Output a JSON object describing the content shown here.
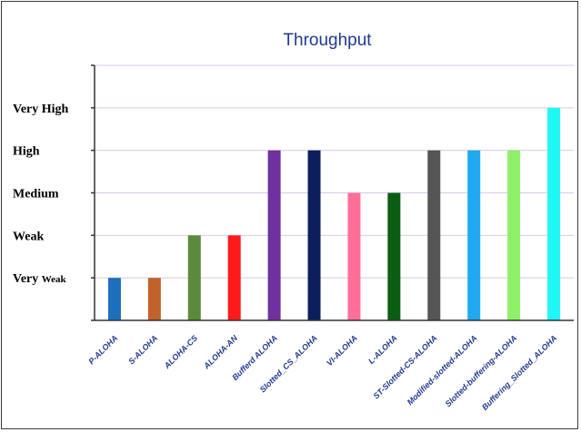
{
  "chart_data": {
    "type": "bar",
    "title": "Throughput",
    "xlabel": "",
    "ylabel": "",
    "ylim": [
      0,
      6
    ],
    "grid": true,
    "y_tick_labels": [
      "Very Weak",
      "Weak",
      "Medium",
      "High",
      "Very High"
    ],
    "categories": [
      "P-ALOHA",
      "S-ALOHA",
      "ALOHA-CS",
      "ALOHA-AN",
      "Bufferd ALOHA",
      "Slotted_CS_ALOHA",
      "VI-ALOHA",
      "L-ALOHA",
      "ST-Slotted-CS-ALOHA",
      "Modified-slotted-ALOHA",
      "Slotted-buffering-ALOHA",
      "Buffering_Slotted_ALOHA"
    ],
    "values": [
      1,
      1,
      2,
      2,
      4,
      4,
      3,
      3,
      4,
      4,
      4,
      5
    ],
    "colors": [
      "#1f6fbf",
      "#c0622a",
      "#5b8a3a",
      "#ff1a1a",
      "#7030a0",
      "#0b1f5c",
      "#ff6f9a",
      "#0b5e12",
      "#555555",
      "#1fa9f0",
      "#8ef06a",
      "#1ff7f7"
    ],
    "title_color": "#1f3a93",
    "grid_color": "#d9c8e8"
  }
}
